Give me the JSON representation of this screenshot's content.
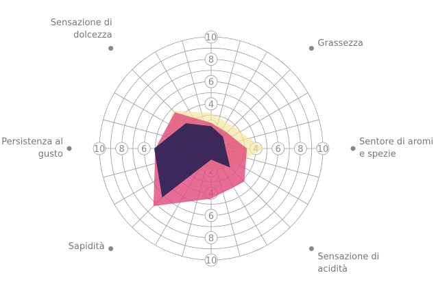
{
  "chart_data": {
    "type": "radar",
    "categories": [
      null,
      "Grassezza",
      "Sentore di aromi e spezie",
      "Sensazione di acidità",
      null,
      "Sapidità",
      "Persistenza al gusto",
      "Sensazione di dolcezza"
    ],
    "rlim": [
      0,
      10
    ],
    "rticks": [
      2,
      4,
      6,
      8,
      10
    ],
    "grid": true,
    "series": [
      {
        "color": "#f3e49a",
        "values": [
          3.2,
          2.8,
          4.7,
          2.4,
          2,
          3,
          4.5,
          4.8
        ]
      },
      {
        "color": "#e04a7c",
        "values": [
          2.3,
          2,
          3.2,
          4.2,
          4.5,
          7.3,
          5,
          4.6
        ]
      },
      {
        "color": "#2a2155",
        "values": [
          2,
          1.5,
          1.3,
          2.4,
          1,
          6.2,
          5.1,
          3.2
        ]
      }
    ]
  }
}
